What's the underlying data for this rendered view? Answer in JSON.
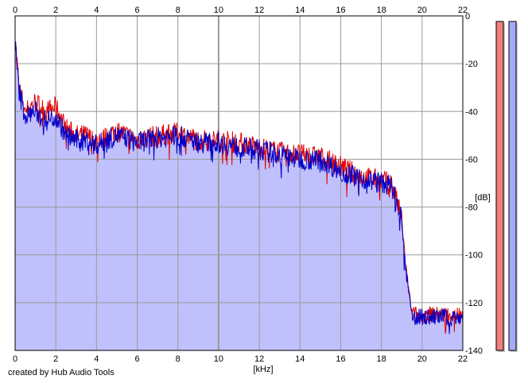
{
  "credit": "created by Hub Audio Tools",
  "colors": {
    "background": "#ffffff",
    "plot_fill": "#c0c0fc",
    "grid": "#9a9a9a",
    "left_channel": "#e00000",
    "right_channel": "#0000cc",
    "meter_left": "#f08080",
    "meter_right": "#a8a8f8"
  },
  "chart_data": {
    "type": "area",
    "xlabel": "[kHz]",
    "ylabel": "[dB]",
    "xlim": [
      0,
      22
    ],
    "ylim": [
      -140,
      0
    ],
    "x_ticks": [
      0,
      2,
      4,
      6,
      8,
      10,
      12,
      14,
      16,
      18,
      20,
      22
    ],
    "y_ticks": [
      0,
      -20,
      -40,
      -60,
      -80,
      -100,
      -120,
      -140
    ],
    "grid": true,
    "series": [
      {
        "color": "#e00000",
        "x": [
          0,
          0.1,
          0.2,
          0.5,
          1,
          1.5,
          2,
          2.5,
          3,
          3.5,
          4,
          5,
          6,
          7,
          8,
          9,
          10,
          11,
          12,
          13,
          14,
          15,
          16,
          17,
          18,
          18.5,
          19,
          19.2,
          19.5,
          20,
          21,
          22
        ],
        "y": [
          -10,
          -20,
          -30,
          -40,
          -36,
          -40,
          -38,
          -47,
          -50,
          -50,
          -53,
          -48,
          -52,
          -50,
          -49,
          -52,
          -52,
          -53,
          -55,
          -57,
          -58,
          -59,
          -63,
          -67,
          -69,
          -70,
          -85,
          -105,
          -125,
          -125,
          -125,
          -125
        ]
      },
      {
        "color": "#0000cc",
        "x": [
          0,
          0.1,
          0.2,
          0.5,
          1,
          1.5,
          2,
          2.5,
          3,
          3.5,
          4,
          5,
          6,
          7,
          8,
          9,
          10,
          11,
          12,
          13,
          14,
          15,
          16,
          17,
          18,
          18.5,
          19,
          19.2,
          19.5,
          20,
          21,
          22
        ],
        "y": [
          -12,
          -22,
          -32,
          -42,
          -40,
          -44,
          -42,
          -50,
          -52,
          -52,
          -54,
          -50,
          -53,
          -51,
          -50,
          -53,
          -53,
          -55,
          -56,
          -58,
          -60,
          -60,
          -65,
          -68,
          -70,
          -71,
          -86,
          -106,
          -126,
          -126,
          -126,
          -126
        ]
      }
    ],
    "level_meters": [
      {
        "color": "#f08080",
        "value": 0
      },
      {
        "color": "#a8a8f8",
        "value": 0
      }
    ]
  }
}
